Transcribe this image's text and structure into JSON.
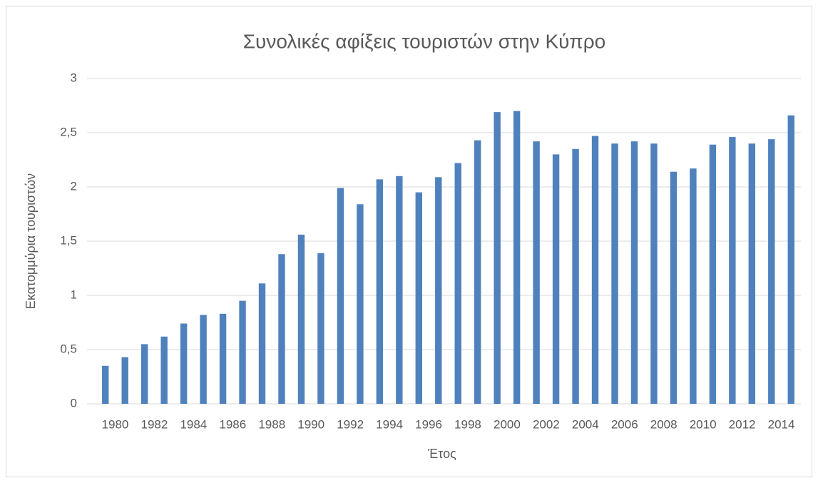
{
  "chart_data": {
    "type": "bar",
    "title": "Συνολικές αφίξεις τουριστών στην Κύπρο",
    "x_label": "Έτος",
    "y_label": "Εκατομμύρια τουριστών",
    "categories": [
      "1980",
      null,
      "1982",
      null,
      "1984",
      null,
      "1986",
      null,
      "1988",
      null,
      "1990",
      null,
      "1992",
      null,
      "1994",
      null,
      "1996",
      null,
      "1998",
      null,
      "2000",
      null,
      "2002",
      null,
      "2004",
      null,
      "2006",
      null,
      "2008",
      null,
      "2010",
      null,
      "2012",
      null,
      "2014",
      null
    ],
    "values": [
      0.35,
      0.43,
      0.55,
      0.62,
      0.74,
      0.82,
      0.83,
      0.95,
      1.11,
      1.38,
      1.56,
      1.39,
      1.99,
      1.84,
      2.07,
      2.1,
      1.95,
      2.09,
      2.22,
      2.43,
      2.69,
      2.7,
      2.42,
      2.3,
      2.35,
      2.47,
      2.4,
      2.42,
      2.4,
      2.14,
      2.17,
      2.39,
      2.46,
      2.4,
      2.44,
      2.66
    ],
    "color": "#4f81bd",
    "ylim": [
      0,
      3
    ],
    "yticks": [
      0,
      {
        "value": 0.5,
        "label": "0,5"
      },
      1,
      {
        "value": 1.5,
        "label": "1,5"
      },
      2,
      {
        "value": 2.5,
        "label": "2,5"
      },
      3
    ],
    "grid": true
  }
}
